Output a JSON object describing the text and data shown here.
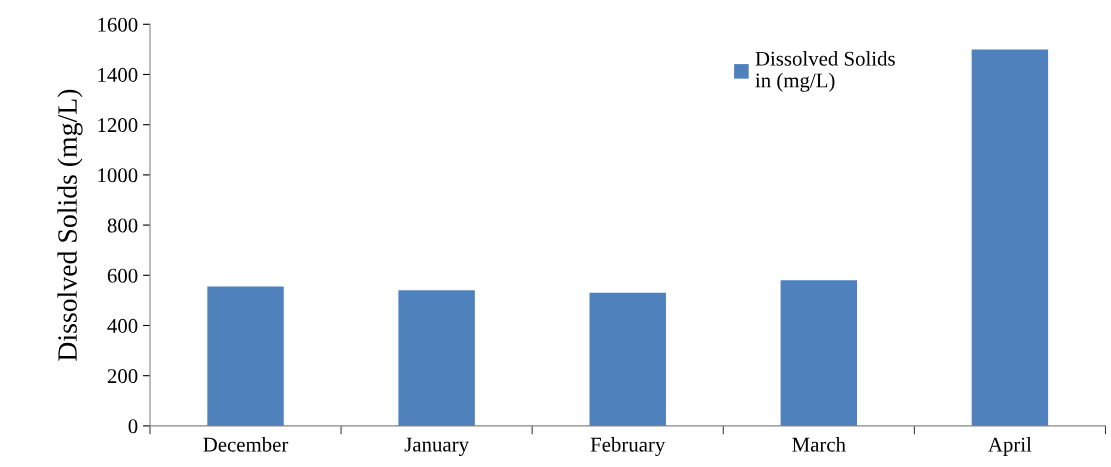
{
  "chart_data": {
    "type": "bar",
    "ylabel": "Dissolved Solids (mg/L)",
    "categories": [
      "December",
      "January",
      "February",
      "March",
      "April"
    ],
    "series": [
      {
        "name": "Dissolved Solids\nin (mg/L)",
        "color": "#4f81bd",
        "values": [
          555,
          540,
          530,
          580,
          1500
        ]
      }
    ],
    "ylim": [
      0,
      1600
    ],
    "yticks": [
      0,
      200,
      400,
      600,
      800,
      1000,
      1200,
      1400,
      1600
    ],
    "grid": false,
    "legend": "top right"
  }
}
